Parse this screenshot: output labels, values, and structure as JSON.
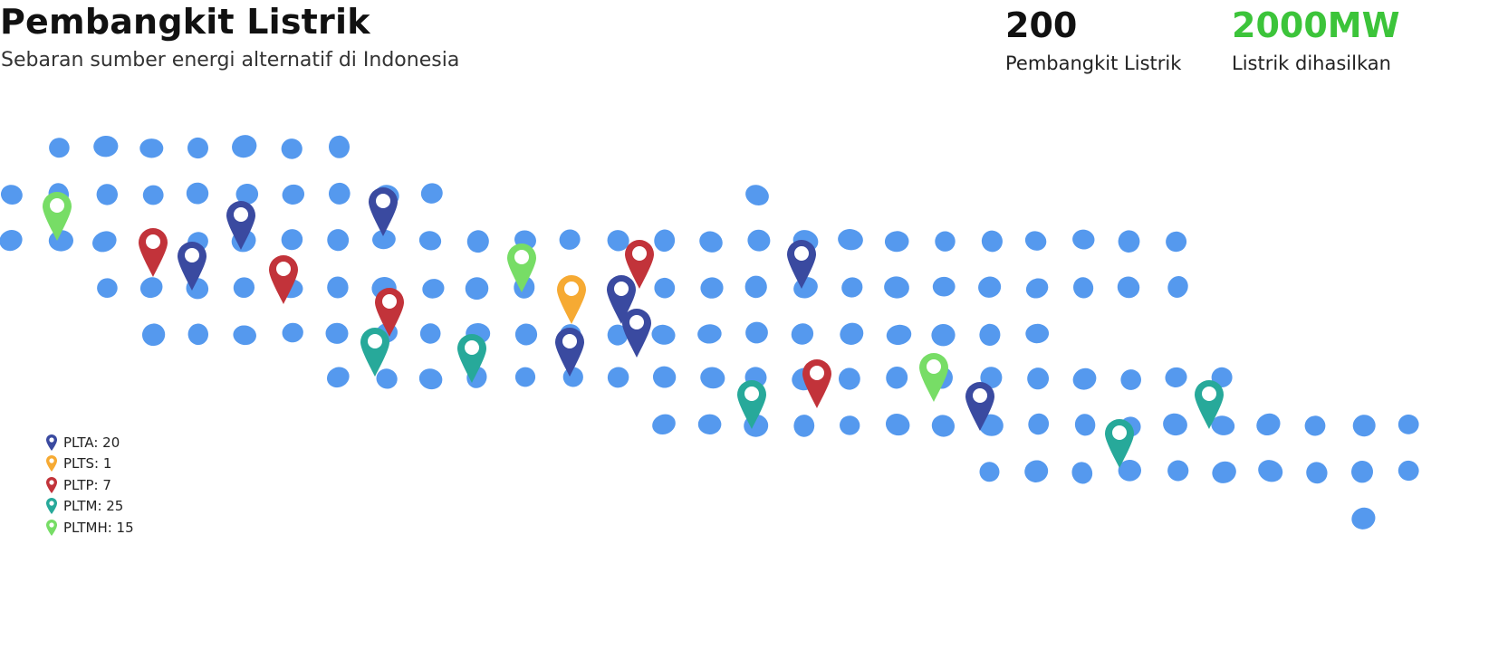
{
  "header": {
    "title": "Pembangkit Listrik",
    "subtitle": "Sebaran sumber energi alternatif di Indonesia"
  },
  "stats": {
    "count_value": "200",
    "count_label": "Pembangkit Listrik",
    "power_value": "2000MW",
    "power_label": "Listrik dihasilkan"
  },
  "colors": {
    "dots": "#5599ee",
    "PLTA": "#3a4aa0",
    "PLTS": "#f6aa33",
    "PLTP": "#c2333a",
    "PLTM": "#27a99a",
    "PLTMH": "#77dd66",
    "power_accent": "#3cc43a"
  },
  "legend": [
    {
      "type": "PLTA",
      "text": "PLTA: 20",
      "icon": "map-pin-icon"
    },
    {
      "type": "PLTS",
      "text": "PLTS: 1",
      "icon": "map-pin-icon"
    },
    {
      "type": "PLTP",
      "text": "PLTP: 7",
      "icon": "map-pin-icon"
    },
    {
      "type": "PLTM",
      "text": "PLTM: 25",
      "icon": "map-pin-icon"
    },
    {
      "type": "PLTMH",
      "text": "PLTMH: 15",
      "icon": "map-pin-icon"
    }
  ]
}
